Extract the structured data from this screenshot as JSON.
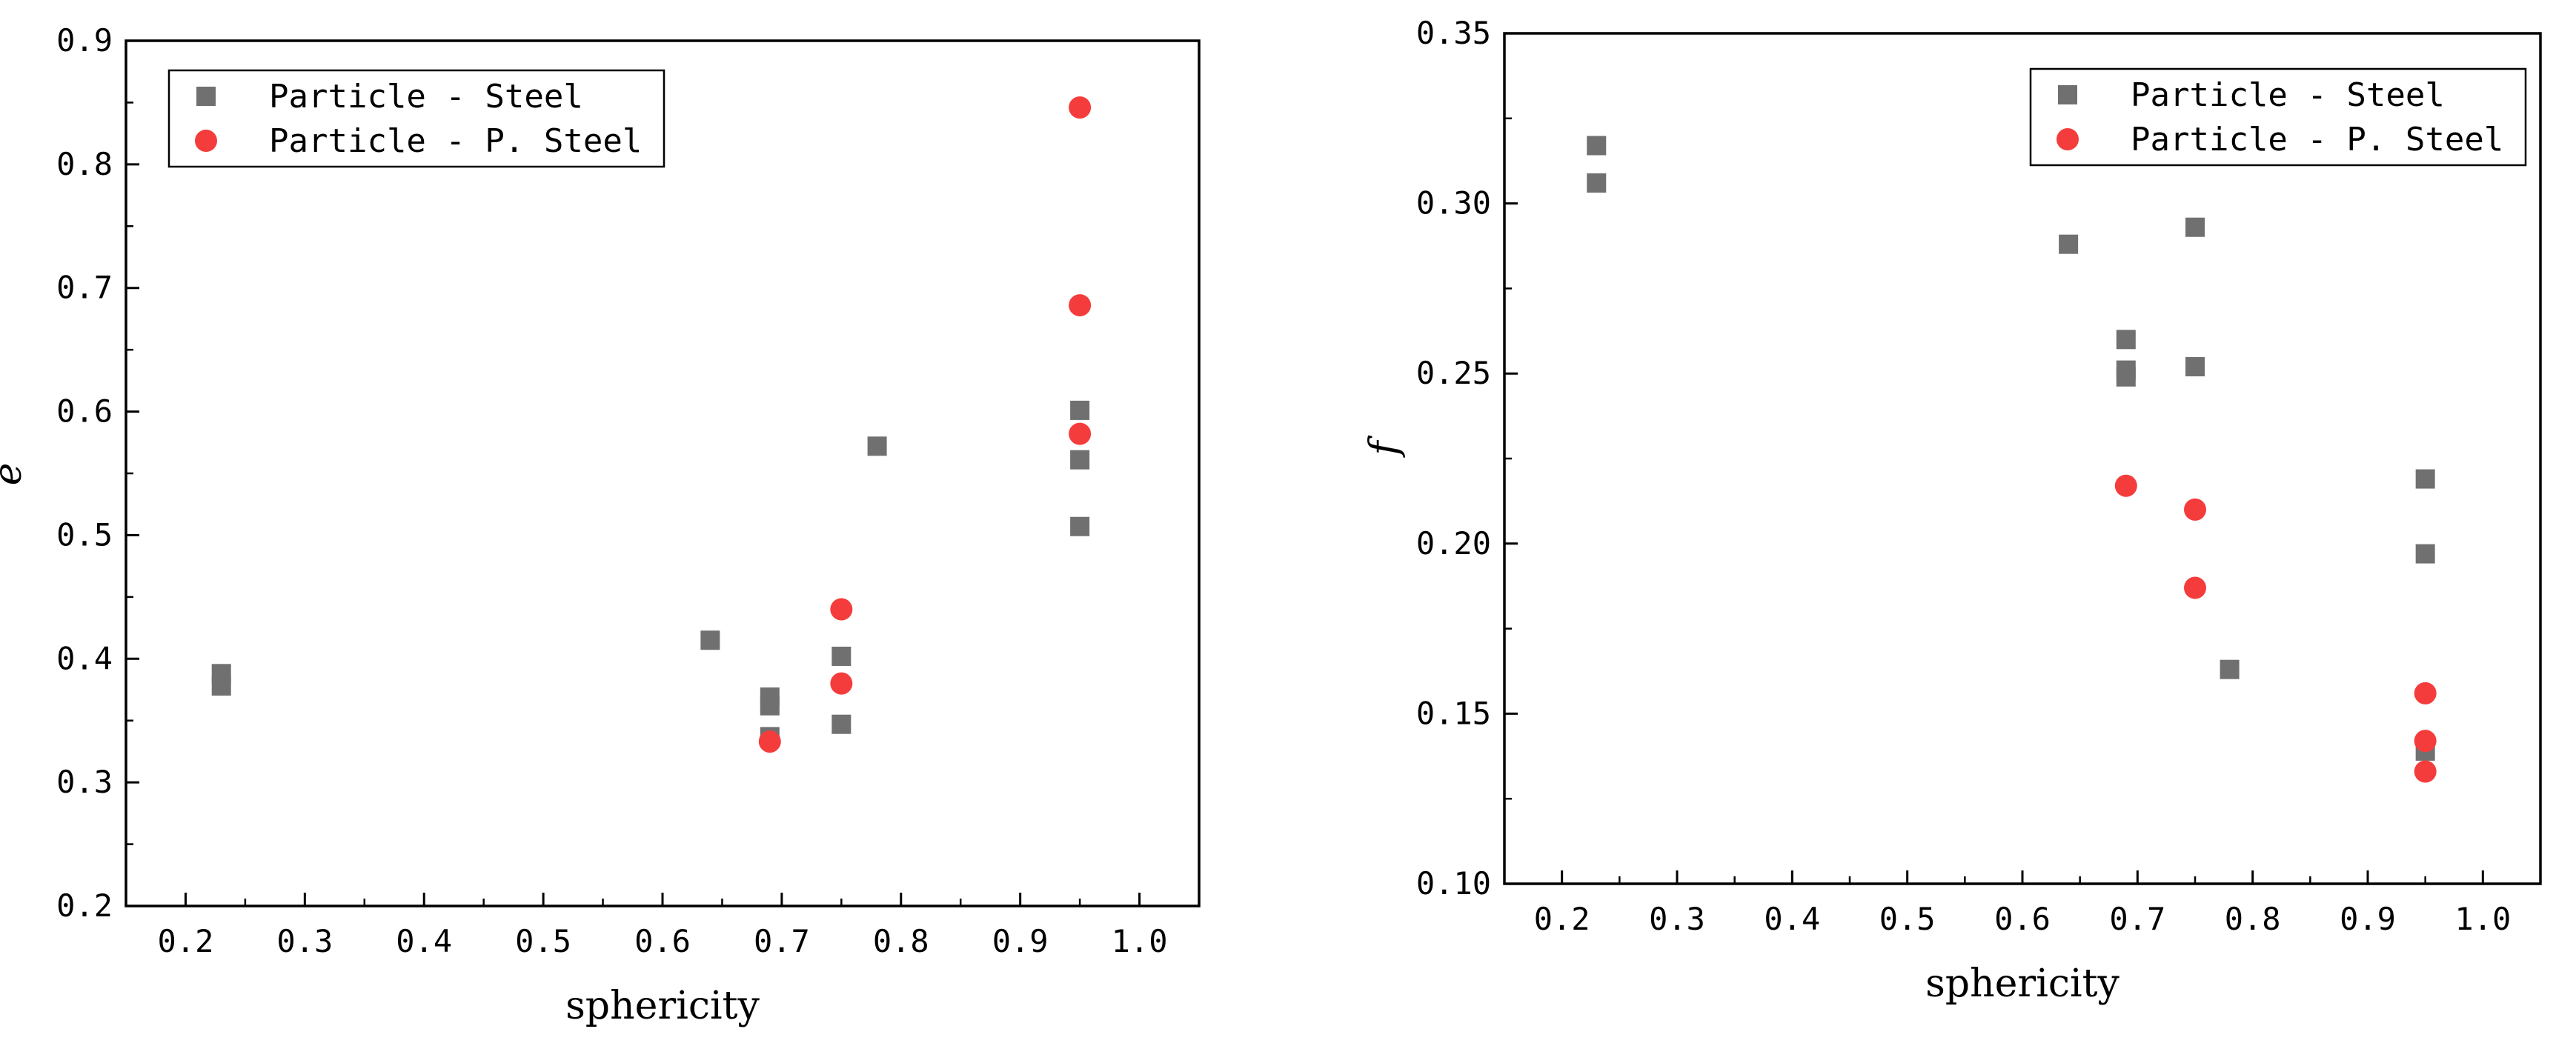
{
  "colors": {
    "steel": "#707070",
    "psteel": "#f53c3c",
    "axis": "#000000"
  },
  "chart_data": [
    {
      "type": "scatter",
      "xlabel": "sphericity",
      "ylabel": "e",
      "xlim": [
        0.15,
        1.05
      ],
      "ylim": [
        0.2,
        0.9
      ],
      "xticks": [
        "0.2",
        "0.3",
        "0.4",
        "0.5",
        "0.6",
        "0.7",
        "0.8",
        "0.9",
        "1.0"
      ],
      "yticks": [
        "0.2",
        "0.3",
        "0.4",
        "0.5",
        "0.6",
        "0.7",
        "0.8",
        "0.9"
      ],
      "legend_position": "top-left",
      "series": [
        {
          "name": "Particle - Steel",
          "marker": "square",
          "color": "#707070",
          "points": [
            [
              0.23,
              0.388
            ],
            [
              0.23,
              0.378
            ],
            [
              0.64,
              0.415
            ],
            [
              0.69,
              0.369
            ],
            [
              0.69,
              0.362
            ],
            [
              0.69,
              0.337
            ],
            [
              0.75,
              0.402
            ],
            [
              0.75,
              0.347
            ],
            [
              0.78,
              0.572
            ],
            [
              0.95,
              0.601
            ],
            [
              0.95,
              0.561
            ],
            [
              0.95,
              0.507
            ]
          ]
        },
        {
          "name": "Particle - P. Steel",
          "marker": "circle",
          "color": "#f53c3c",
          "points": [
            [
              0.69,
              0.333
            ],
            [
              0.75,
              0.44
            ],
            [
              0.75,
              0.38
            ],
            [
              0.95,
              0.846
            ],
            [
              0.95,
              0.686
            ],
            [
              0.95,
              0.582
            ]
          ]
        }
      ]
    },
    {
      "type": "scatter",
      "xlabel": "sphericity",
      "ylabel": "f",
      "xlim": [
        0.15,
        1.05
      ],
      "ylim": [
        0.1,
        0.35
      ],
      "xticks": [
        "0.2",
        "0.3",
        "0.4",
        "0.5",
        "0.6",
        "0.7",
        "0.8",
        "0.9",
        "1.0"
      ],
      "yticks": [
        "0.10",
        "0.15",
        "0.20",
        "0.25",
        "0.30",
        "0.35"
      ],
      "legend_position": "top-right",
      "series": [
        {
          "name": "Particle - Steel",
          "marker": "square",
          "color": "#707070",
          "points": [
            [
              0.23,
              0.317
            ],
            [
              0.23,
              0.306
            ],
            [
              0.64,
              0.288
            ],
            [
              0.69,
              0.26
            ],
            [
              0.69,
              0.251
            ],
            [
              0.69,
              0.249
            ],
            [
              0.75,
              0.293
            ],
            [
              0.75,
              0.252
            ],
            [
              0.78,
              0.163
            ],
            [
              0.95,
              0.219
            ],
            [
              0.95,
              0.197
            ],
            [
              0.95,
              0.139
            ]
          ]
        },
        {
          "name": "Particle - P. Steel",
          "marker": "circle",
          "color": "#f53c3c",
          "points": [
            [
              0.69,
              0.217
            ],
            [
              0.75,
              0.21
            ],
            [
              0.75,
              0.187
            ],
            [
              0.95,
              0.156
            ],
            [
              0.95,
              0.142
            ],
            [
              0.95,
              0.133
            ]
          ]
        }
      ]
    }
  ]
}
